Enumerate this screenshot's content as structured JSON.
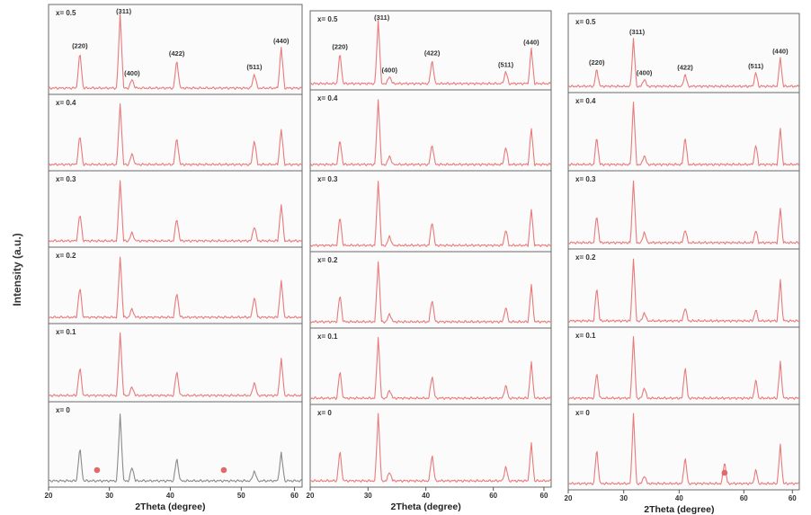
{
  "ylabel": "Intensity (a.u.)",
  "chart_data": [
    {
      "type": "line",
      "xlabel": "2Theta (degree)",
      "ylabel": "Intensity (a.u.)",
      "xlim": [
        20,
        80
      ],
      "x_ticks": [
        "20",
        "30",
        "40",
        "50",
        "60"
      ],
      "panels": [
        {
          "label": "x= 0.5",
          "color": "#e87a7a",
          "peaks": [
            {
              "x": 30.2,
              "h": 0.48,
              "hkl": "(220)"
            },
            {
              "x": 35.6,
              "h": 1.0,
              "hkl": "(311)"
            },
            {
              "x": 37.2,
              "h": 0.12,
              "hkl": "(400)"
            },
            {
              "x": 43.2,
              "h": 0.38,
              "hkl": "(422)"
            },
            {
              "x": 53.6,
              "h": 0.2,
              "hkl": "(511)"
            },
            {
              "x": 57.2,
              "h": 0.55,
              "hkl": "(440)"
            }
          ],
          "stars": []
        },
        {
          "label": "x= 0.4",
          "color": "#e87a7a",
          "peaks": [
            {
              "x": 30.2,
              "h": 0.48
            },
            {
              "x": 35.6,
              "h": 1.0
            },
            {
              "x": 37.2,
              "h": 0.18
            },
            {
              "x": 43.2,
              "h": 0.45
            },
            {
              "x": 53.6,
              "h": 0.42
            },
            {
              "x": 57.2,
              "h": 0.58
            }
          ],
          "stars": []
        },
        {
          "label": "x= 0.3",
          "color": "#e87a7a",
          "peaks": [
            {
              "x": 30.2,
              "h": 0.45
            },
            {
              "x": 35.6,
              "h": 1.0
            },
            {
              "x": 37.2,
              "h": 0.14
            },
            {
              "x": 43.2,
              "h": 0.38
            },
            {
              "x": 53.6,
              "h": 0.25
            },
            {
              "x": 57.2,
              "h": 0.6
            }
          ],
          "stars": []
        },
        {
          "label": "x= 0.2",
          "color": "#e87a7a",
          "peaks": [
            {
              "x": 30.2,
              "h": 0.5
            },
            {
              "x": 35.6,
              "h": 1.0
            },
            {
              "x": 37.2,
              "h": 0.14
            },
            {
              "x": 43.2,
              "h": 0.42
            },
            {
              "x": 53.6,
              "h": 0.35
            },
            {
              "x": 57.2,
              "h": 0.6
            }
          ],
          "stars": []
        },
        {
          "label": "x= 0.1",
          "color": "#e87a7a",
          "peaks": [
            {
              "x": 30.2,
              "h": 0.45
            },
            {
              "x": 35.6,
              "h": 1.0
            },
            {
              "x": 37.2,
              "h": 0.14
            },
            {
              "x": 43.2,
              "h": 0.4
            },
            {
              "x": 53.6,
              "h": 0.22
            },
            {
              "x": 57.2,
              "h": 0.58
            }
          ],
          "stars": []
        },
        {
          "label": "x= 0",
          "color": "#8a8a8a",
          "peaks": [
            {
              "x": 30.2,
              "h": 0.47
            },
            {
              "x": 35.6,
              "h": 0.95
            },
            {
              "x": 37.2,
              "h": 0.2
            },
            {
              "x": 43.2,
              "h": 0.33
            },
            {
              "x": 53.6,
              "h": 0.15
            },
            {
              "x": 57.2,
              "h": 0.4
            }
          ],
          "stars": [
            32.5,
            49.5
          ]
        }
      ]
    },
    {
      "type": "line",
      "xlabel": "2Theta (degree)",
      "ylabel": "Intensity (a.u.)",
      "xlim": [
        20,
        80
      ],
      "x_ticks": [
        "20",
        "30",
        "40",
        "60",
        "60"
      ],
      "panels": [
        {
          "label": "x= 0.5",
          "color": "#e87a7a",
          "peaks": [
            {
              "x": 30.2,
              "h": 0.48,
              "hkl": "(220)"
            },
            {
              "x": 35.6,
              "h": 1.0,
              "hkl": "(311)"
            },
            {
              "x": 37.2,
              "h": 0.12,
              "hkl": "(400)"
            },
            {
              "x": 43.2,
              "h": 0.38,
              "hkl": "(422)"
            },
            {
              "x": 53.6,
              "h": 0.2,
              "hkl": "(511)"
            },
            {
              "x": 57.2,
              "h": 0.55,
              "hkl": "(440)"
            }
          ],
          "stars": []
        },
        {
          "label": "x= 0.4",
          "color": "#e87a7a",
          "peaks": [
            {
              "x": 30.2,
              "h": 0.38
            },
            {
              "x": 35.6,
              "h": 1.0
            },
            {
              "x": 37.2,
              "h": 0.14
            },
            {
              "x": 43.2,
              "h": 0.32
            },
            {
              "x": 53.6,
              "h": 0.28
            },
            {
              "x": 57.2,
              "h": 0.55
            }
          ],
          "stars": []
        },
        {
          "label": "x= 0.3",
          "color": "#e87a7a",
          "peaks": [
            {
              "x": 30.2,
              "h": 0.45
            },
            {
              "x": 35.6,
              "h": 1.0
            },
            {
              "x": 37.2,
              "h": 0.15
            },
            {
              "x": 43.2,
              "h": 0.38
            },
            {
              "x": 53.6,
              "h": 0.25
            },
            {
              "x": 57.2,
              "h": 0.55
            }
          ],
          "stars": []
        },
        {
          "label": "x= 0.2",
          "color": "#e87a7a",
          "peaks": [
            {
              "x": 30.2,
              "h": 0.45
            },
            {
              "x": 35.6,
              "h": 1.0
            },
            {
              "x": 37.2,
              "h": 0.14
            },
            {
              "x": 43.2,
              "h": 0.38
            },
            {
              "x": 53.6,
              "h": 0.25
            },
            {
              "x": 57.2,
              "h": 0.6
            }
          ],
          "stars": []
        },
        {
          "label": "x= 0.1",
          "color": "#e87a7a",
          "peaks": [
            {
              "x": 30.2,
              "h": 0.45
            },
            {
              "x": 35.6,
              "h": 1.0
            },
            {
              "x": 37.2,
              "h": 0.14
            },
            {
              "x": 43.2,
              "h": 0.38
            },
            {
              "x": 53.6,
              "h": 0.22
            },
            {
              "x": 57.2,
              "h": 0.58
            }
          ],
          "stars": []
        },
        {
          "label": "x= 0",
          "color": "#e87a7a",
          "peaks": [
            {
              "x": 30.2,
              "h": 0.45
            },
            {
              "x": 35.6,
              "h": 1.0
            },
            {
              "x": 37.2,
              "h": 0.14
            },
            {
              "x": 43.2,
              "h": 0.4
            },
            {
              "x": 53.6,
              "h": 0.22
            },
            {
              "x": 57.2,
              "h": 0.55
            }
          ],
          "stars": []
        }
      ]
    },
    {
      "type": "line",
      "xlabel": "2Theta (degree)",
      "ylabel": "Intensity (a.u.)",
      "xlim": [
        20,
        80
      ],
      "x_ticks": [
        "20",
        "30",
        "40",
        "60",
        "60"
      ],
      "panels": [
        {
          "label": "x= 0.5",
          "color": "#e87a7a",
          "peaks": [
            {
              "x": 30.2,
              "h": 0.28,
              "hkl": "(220)"
            },
            {
              "x": 35.6,
              "h": 0.75,
              "hkl": "(311)"
            },
            {
              "x": 37.2,
              "h": 0.12,
              "hkl": "(400)"
            },
            {
              "x": 43.2,
              "h": 0.2,
              "hkl": "(422)"
            },
            {
              "x": 53.6,
              "h": 0.22,
              "hkl": "(511)"
            },
            {
              "x": 57.2,
              "h": 0.45,
              "hkl": "(440)"
            }
          ],
          "stars": []
        },
        {
          "label": "x= 0.4",
          "color": "#e87a7a",
          "peaks": [
            {
              "x": 30.2,
              "h": 0.45
            },
            {
              "x": 35.6,
              "h": 1.0
            },
            {
              "x": 37.2,
              "h": 0.15
            },
            {
              "x": 43.2,
              "h": 0.45
            },
            {
              "x": 53.6,
              "h": 0.32
            },
            {
              "x": 57.2,
              "h": 0.58
            }
          ],
          "stars": []
        },
        {
          "label": "x= 0.3",
          "color": "#e87a7a",
          "peaks": [
            {
              "x": 30.2,
              "h": 0.45
            },
            {
              "x": 35.6,
              "h": 1.0
            },
            {
              "x": 37.2,
              "h": 0.18
            },
            {
              "x": 43.2,
              "h": 0.22
            },
            {
              "x": 53.6,
              "h": 0.2
            },
            {
              "x": 57.2,
              "h": 0.55
            }
          ],
          "stars": []
        },
        {
          "label": "x= 0.2",
          "color": "#e87a7a",
          "peaks": [
            {
              "x": 30.2,
              "h": 0.55
            },
            {
              "x": 35.6,
              "h": 1.0
            },
            {
              "x": 37.2,
              "h": 0.14
            },
            {
              "x": 43.2,
              "h": 0.22
            },
            {
              "x": 53.6,
              "h": 0.18
            },
            {
              "x": 57.2,
              "h": 0.65
            }
          ],
          "stars": []
        },
        {
          "label": "x= 0.1",
          "color": "#e87a7a",
          "peaks": [
            {
              "x": 30.2,
              "h": 0.42
            },
            {
              "x": 35.6,
              "h": 1.0
            },
            {
              "x": 37.2,
              "h": 0.18
            },
            {
              "x": 43.2,
              "h": 0.52
            },
            {
              "x": 53.6,
              "h": 0.3
            },
            {
              "x": 57.2,
              "h": 0.58
            }
          ],
          "stars": []
        },
        {
          "label": "x= 0",
          "color": "#e87a7a",
          "peaks": [
            {
              "x": 30.2,
              "h": 0.5
            },
            {
              "x": 35.6,
              "h": 1.0
            },
            {
              "x": 37.2,
              "h": 0.12
            },
            {
              "x": 43.2,
              "h": 0.38
            },
            {
              "x": 49.0,
              "h": 0.32
            },
            {
              "x": 53.6,
              "h": 0.2
            },
            {
              "x": 57.2,
              "h": 0.55
            }
          ],
          "stars": [
            49.0
          ]
        }
      ]
    }
  ]
}
